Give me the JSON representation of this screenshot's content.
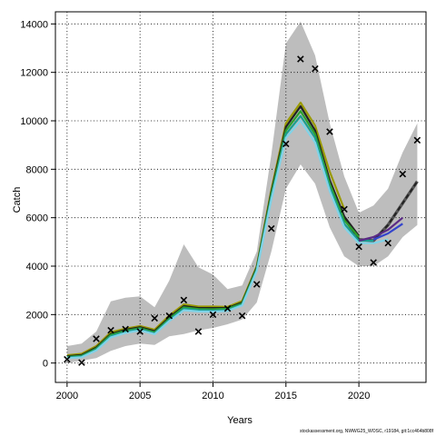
{
  "chart_data": {
    "type": "line",
    "xlabel": "Years",
    "ylabel": "Catch",
    "xlim": [
      1999.2,
      2024.6
    ],
    "ylim": [
      -800,
      14500
    ],
    "x_ticks": [
      2000,
      2005,
      2010,
      2015,
      2020
    ],
    "y_ticks": [
      0,
      2000,
      4000,
      6000,
      8000,
      10000,
      12000,
      14000
    ],
    "grid": true,
    "colors": {
      "band": "#bdbdbd",
      "olive": "#9a9a00",
      "green": "#2ca02c",
      "teal": "#1a9e8f",
      "cyan": "#7fd3e8",
      "black": "#222222",
      "dashed": "#555555",
      "purple": "#5b2a86",
      "blue": "#3344cc",
      "marker": "#000000",
      "grid": "#000000"
    },
    "band": {
      "x": [
        2000,
        2001,
        2002,
        2003,
        2004,
        2005,
        2006,
        2007,
        2008,
        2009,
        2010,
        2011,
        2012,
        2013,
        2014,
        2015,
        2016,
        2017,
        2018,
        2019,
        2020,
        2021,
        2022,
        2023,
        2024
      ],
      "upper": [
        700,
        800,
        1300,
        2550,
        2700,
        2750,
        2300,
        3400,
        4900,
        3950,
        3650,
        3050,
        3200,
        4600,
        8600,
        13200,
        14100,
        12700,
        9900,
        7700,
        6200,
        6500,
        7200,
        8700,
        9900
      ],
      "lower": [
        0,
        100,
        200,
        500,
        700,
        800,
        750,
        1100,
        1200,
        1350,
        1450,
        1600,
        1800,
        2500,
        4600,
        7200,
        8200,
        7400,
        5600,
        4400,
        4000,
        4000,
        4400,
        5200,
        5700
      ]
    },
    "series": [
      {
        "key": "dashed",
        "x": [
          2019,
          2020,
          2021,
          2022,
          2023,
          2024
        ],
        "values": [
          6000,
          5100,
          5050,
          5700,
          6600,
          7500
        ]
      },
      {
        "key": "olive",
        "x": [
          2000,
          2001,
          2002,
          2003,
          2004,
          2005,
          2006,
          2007,
          2008,
          2009,
          2010,
          2011,
          2012,
          2013,
          2014,
          2015,
          2016,
          2017,
          2018,
          2019
        ],
        "values": [
          320,
          380,
          700,
          1270,
          1420,
          1530,
          1380,
          1960,
          2420,
          2330,
          2330,
          2320,
          2560,
          4000,
          7150,
          9900,
          10750,
          9800,
          7900,
          6350
        ]
      },
      {
        "key": "black",
        "x": [
          2000,
          2001,
          2002,
          2003,
          2004,
          2005,
          2006,
          2007,
          2008,
          2009,
          2010,
          2011,
          2012,
          2013,
          2014,
          2015,
          2016,
          2017,
          2018,
          2019,
          2020
        ],
        "values": [
          280,
          330,
          640,
          1200,
          1370,
          1480,
          1320,
          1880,
          2350,
          2270,
          2270,
          2270,
          2500,
          3950,
          7050,
          9750,
          10600,
          9600,
          7550,
          6050,
          5250
        ]
      },
      {
        "key": "green",
        "x": [
          2000,
          2001,
          2002,
          2003,
          2004,
          2005,
          2006,
          2007,
          2008,
          2009,
          2010,
          2011,
          2012,
          2013,
          2014,
          2015,
          2016,
          2017,
          2018,
          2019,
          2020
        ],
        "values": [
          250,
          300,
          600,
          1160,
          1330,
          1440,
          1270,
          1830,
          2300,
          2230,
          2220,
          2240,
          2460,
          3900,
          6950,
          9600,
          10400,
          9450,
          7400,
          5900,
          5200
        ]
      },
      {
        "key": "teal",
        "x": [
          2000,
          2001,
          2002,
          2003,
          2004,
          2005,
          2006,
          2007,
          2008,
          2009,
          2010,
          2011,
          2012,
          2013,
          2014,
          2015,
          2016,
          2017,
          2018,
          2019,
          2020,
          2021
        ],
        "values": [
          230,
          270,
          560,
          1110,
          1290,
          1400,
          1230,
          1780,
          2240,
          2180,
          2170,
          2190,
          2420,
          3850,
          6850,
          9450,
          10200,
          9300,
          7250,
          5750,
          5050,
          5050
        ]
      },
      {
        "key": "cyan",
        "x": [
          2000,
          2001,
          2002,
          2003,
          2004,
          2005,
          2006,
          2007,
          2008,
          2009,
          2010,
          2011,
          2012,
          2013,
          2014,
          2015,
          2016,
          2017,
          2018,
          2019,
          2020,
          2021,
          2022
        ],
        "values": [
          200,
          240,
          520,
          1060,
          1240,
          1350,
          1190,
          1730,
          2180,
          2130,
          2120,
          2150,
          2380,
          3800,
          6750,
          9300,
          10000,
          9100,
          7100,
          5600,
          4950,
          4950,
          5100
        ]
      },
      {
        "key": "purple",
        "x": [
          2020,
          2021,
          2022,
          2023
        ],
        "values": [
          5050,
          5200,
          5500,
          6000
        ]
      },
      {
        "key": "blue",
        "x": [
          2021,
          2022,
          2023
        ],
        "values": [
          5100,
          5350,
          5750
        ]
      }
    ],
    "observations": {
      "x": [
        2000,
        2001,
        2002,
        2003,
        2004,
        2005,
        2006,
        2007,
        2008,
        2009,
        2010,
        2011,
        2012,
        2013,
        2014,
        2015,
        2016,
        2017,
        2018,
        2019,
        2020,
        2021,
        2022,
        2023,
        2024
      ],
      "y": [
        150,
        20,
        1000,
        1350,
        1400,
        1300,
        1850,
        1950,
        2600,
        1300,
        2000,
        2250,
        1950,
        3250,
        5550,
        9050,
        12550,
        12150,
        9550,
        6350,
        4800,
        4150,
        4950,
        7800,
        9200
      ]
    }
  },
  "footer": "stockassessment.org, NWWG25_WOSC, r19184, git:1cc464b808f"
}
